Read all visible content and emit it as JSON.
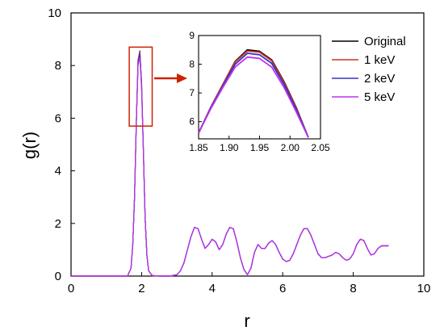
{
  "chart_data": {
    "type": "line",
    "xlabel": "r",
    "ylabel": "g(r)",
    "xlim": [
      0,
      10
    ],
    "ylim": [
      0,
      10
    ],
    "xticks": [
      "0",
      "2",
      "4",
      "6",
      "8",
      "10"
    ],
    "yticks": [
      "0",
      "2",
      "4",
      "6",
      "8",
      "10"
    ],
    "grid": false,
    "legend_placement": "top-right",
    "x": [
      0,
      1.6,
      1.7,
      1.75,
      1.8,
      1.85,
      1.9,
      1.95,
      2.0,
      2.05,
      2.1,
      2.15,
      2.2,
      2.3,
      2.5,
      2.8,
      3.0,
      3.1,
      3.2,
      3.3,
      3.4,
      3.5,
      3.6,
      3.7,
      3.8,
      3.9,
      4.0,
      4.1,
      4.2,
      4.3,
      4.4,
      4.5,
      4.6,
      4.7,
      4.8,
      4.9,
      5.0,
      5.1,
      5.2,
      5.3,
      5.4,
      5.5,
      5.6,
      5.7,
      5.8,
      5.9,
      6.0,
      6.1,
      6.2,
      6.3,
      6.4,
      6.5,
      6.6,
      6.7,
      6.8,
      6.9,
      7.0,
      7.1,
      7.2,
      7.3,
      7.4,
      7.5,
      7.6,
      7.7,
      7.8,
      7.9,
      8.0,
      8.1,
      8.2,
      8.3,
      8.4,
      8.5,
      8.6,
      8.7,
      8.8,
      8.9,
      9.0
    ],
    "series": [
      {
        "name": "Original",
        "color": "#000000",
        "values": [
          0,
          0,
          0.3,
          1.2,
          3.0,
          5.8,
          8.2,
          8.55,
          7.3,
          4.8,
          2.2,
          0.8,
          0.2,
          0.02,
          0,
          0,
          0.05,
          0.2,
          0.5,
          1.0,
          1.5,
          1.85,
          1.8,
          1.4,
          1.05,
          1.2,
          1.4,
          1.3,
          1.0,
          1.2,
          1.6,
          1.85,
          1.8,
          1.3,
          0.7,
          0.25,
          0.05,
          0.3,
          0.9,
          1.2,
          1.05,
          1.05,
          1.25,
          1.35,
          1.2,
          0.9,
          0.65,
          0.55,
          0.6,
          0.85,
          1.2,
          1.55,
          1.8,
          1.8,
          1.55,
          1.2,
          0.85,
          0.7,
          0.7,
          0.75,
          0.8,
          0.9,
          0.85,
          0.7,
          0.6,
          0.65,
          0.85,
          1.2,
          1.4,
          1.35,
          1.05,
          0.8,
          0.85,
          1.05,
          1.15,
          1.15,
          1.15
        ]
      },
      {
        "name": "1 keV",
        "color": "#cc3322",
        "values": [
          0,
          0,
          0.3,
          1.2,
          3.0,
          5.8,
          8.2,
          8.52,
          7.3,
          4.8,
          2.2,
          0.8,
          0.2,
          0.02,
          0,
          0,
          0.05,
          0.2,
          0.5,
          1.0,
          1.5,
          1.85,
          1.8,
          1.4,
          1.05,
          1.2,
          1.4,
          1.3,
          1.0,
          1.2,
          1.6,
          1.85,
          1.8,
          1.3,
          0.7,
          0.25,
          0.05,
          0.3,
          0.9,
          1.2,
          1.05,
          1.05,
          1.25,
          1.35,
          1.2,
          0.9,
          0.65,
          0.55,
          0.6,
          0.85,
          1.2,
          1.55,
          1.8,
          1.8,
          1.55,
          1.2,
          0.85,
          0.7,
          0.7,
          0.75,
          0.8,
          0.9,
          0.85,
          0.7,
          0.6,
          0.65,
          0.85,
          1.2,
          1.4,
          1.35,
          1.05,
          0.8,
          0.85,
          1.05,
          1.15,
          1.15,
          1.15
        ]
      },
      {
        "name": "2 keV",
        "color": "#3333cc",
        "values": [
          0,
          0,
          0.3,
          1.2,
          3.0,
          5.8,
          8.1,
          8.45,
          7.2,
          4.8,
          2.2,
          0.8,
          0.2,
          0.02,
          0,
          0,
          0.05,
          0.2,
          0.5,
          1.0,
          1.5,
          1.85,
          1.8,
          1.4,
          1.05,
          1.2,
          1.4,
          1.3,
          1.0,
          1.2,
          1.6,
          1.85,
          1.8,
          1.3,
          0.7,
          0.25,
          0.05,
          0.3,
          0.9,
          1.2,
          1.05,
          1.05,
          1.25,
          1.35,
          1.2,
          0.9,
          0.65,
          0.55,
          0.6,
          0.85,
          1.2,
          1.55,
          1.8,
          1.8,
          1.55,
          1.2,
          0.85,
          0.7,
          0.7,
          0.75,
          0.8,
          0.9,
          0.85,
          0.7,
          0.6,
          0.65,
          0.85,
          1.2,
          1.4,
          1.35,
          1.05,
          0.8,
          0.85,
          1.05,
          1.15,
          1.15,
          1.15
        ]
      },
      {
        "name": "5 keV",
        "color": "#bb33ee",
        "values": [
          0,
          0,
          0.3,
          1.2,
          3.0,
          5.8,
          8.0,
          8.3,
          7.1,
          4.8,
          2.2,
          0.8,
          0.2,
          0.02,
          0,
          0,
          0.05,
          0.2,
          0.5,
          1.0,
          1.5,
          1.85,
          1.8,
          1.4,
          1.05,
          1.2,
          1.4,
          1.3,
          1.0,
          1.2,
          1.6,
          1.85,
          1.8,
          1.3,
          0.7,
          0.25,
          0.05,
          0.3,
          0.9,
          1.2,
          1.05,
          1.05,
          1.25,
          1.35,
          1.2,
          0.9,
          0.65,
          0.55,
          0.6,
          0.85,
          1.2,
          1.55,
          1.8,
          1.8,
          1.55,
          1.2,
          0.85,
          0.7,
          0.7,
          0.75,
          0.8,
          0.9,
          0.85,
          0.7,
          0.6,
          0.65,
          0.85,
          1.2,
          1.4,
          1.35,
          1.05,
          0.8,
          0.85,
          1.05,
          1.15,
          1.15,
          1.15
        ]
      }
    ],
    "highlight_box": {
      "x": [
        1.65,
        2.3
      ],
      "y": [
        5.7,
        8.7
      ],
      "color": "#cc2200"
    },
    "inset": {
      "type": "line",
      "xlim": [
        1.85,
        2.05
      ],
      "ylim": [
        5.4,
        9
      ],
      "xticks": [
        "1.85",
        "1.90",
        "1.95",
        "2.00",
        "2.05"
      ],
      "yticks": [
        "6",
        "7",
        "8",
        "9"
      ],
      "x": [
        1.85,
        1.87,
        1.89,
        1.91,
        1.93,
        1.95,
        1.97,
        1.99,
        2.01,
        2.03
      ],
      "series": [
        {
          "name": "Original",
          "color": "#000000",
          "values": [
            5.6,
            6.5,
            7.3,
            8.1,
            8.5,
            8.45,
            8.15,
            7.4,
            6.5,
            5.45
          ]
        },
        {
          "name": "1 keV",
          "color": "#cc3322",
          "values": [
            5.6,
            6.5,
            7.3,
            8.08,
            8.46,
            8.42,
            8.12,
            7.37,
            6.48,
            5.45
          ]
        },
        {
          "name": "2 keV",
          "color": "#3333cc",
          "values": [
            5.6,
            6.48,
            7.25,
            8.0,
            8.38,
            8.33,
            8.03,
            7.3,
            6.43,
            5.45
          ]
        },
        {
          "name": "5 keV",
          "color": "#bb33ee",
          "values": [
            5.6,
            6.45,
            7.2,
            7.9,
            8.25,
            8.2,
            7.9,
            7.2,
            6.35,
            5.45
          ]
        }
      ]
    },
    "arrow_color": "#cc2200"
  }
}
